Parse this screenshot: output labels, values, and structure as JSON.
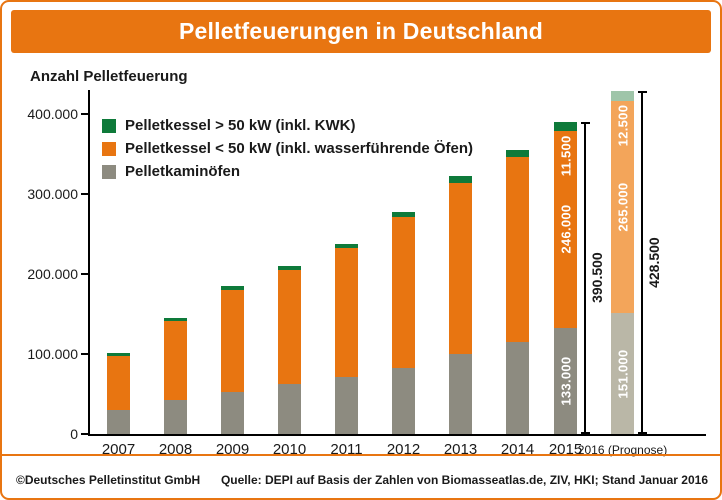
{
  "header": {
    "title": "Pelletfeuerungen in Deutschland"
  },
  "y_axis_label": "Anzahl Pelletfeuerung",
  "legend": [
    {
      "label": "Pelletkessel > 50 kW (inkl. KWK)",
      "color": "#0e7a3a"
    },
    {
      "label": "Pelletkessel < 50 kW (inkl. wasserführende Öfen)",
      "color": "#e87511"
    },
    {
      "label": "Pelletkaminöfen",
      "color": "#8d8b80"
    }
  ],
  "chart_data": {
    "type": "bar",
    "stacked": true,
    "title": "Pelletfeuerungen in Deutschland",
    "ylabel": "Anzahl Pelletfeuerung",
    "ylim": [
      0,
      430000
    ],
    "grid": false,
    "legend_position": "top-left",
    "y_ticks": [
      {
        "value": 0,
        "label": "0"
      },
      {
        "value": 100000,
        "label": "100.000"
      },
      {
        "value": 200000,
        "label": "200.000"
      },
      {
        "value": 300000,
        "label": "300.000"
      },
      {
        "value": 400000,
        "label": "400.000"
      }
    ],
    "categories": [
      "2007",
      "2008",
      "2009",
      "2010",
      "2011",
      "2012",
      "2013",
      "2014",
      "2015",
      "2016 (Prognose)"
    ],
    "forecast_index": 9,
    "series": [
      {
        "name": "Pelletkaminöfen",
        "color": "#8d8b80",
        "forecast_color": "#bab7a7",
        "values": [
          30000,
          42000,
          53000,
          62000,
          71000,
          82000,
          100000,
          115000,
          133000,
          151000
        ]
      },
      {
        "name": "Pelletkessel < 50 kW (inkl. wasserführende Öfen)",
        "color": "#e87511",
        "forecast_color": "#f3a55a",
        "values": [
          68000,
          99000,
          127000,
          143000,
          161000,
          189000,
          214000,
          231000,
          246000,
          265000
        ]
      },
      {
        "name": "Pelletkessel > 50 kW (inkl. KWK)",
        "color": "#0e7a3a",
        "forecast_color": "#9fc5a9",
        "values": [
          3000,
          4000,
          5000,
          5500,
          6000,
          7000,
          8000,
          9000,
          11500,
          12500
        ]
      }
    ],
    "segment_labels": [
      {
        "category_index": 8,
        "labels": [
          "133.000",
          "246.000",
          "11.500"
        ]
      },
      {
        "category_index": 9,
        "labels": [
          "151.000",
          "265.000",
          "12.500"
        ]
      }
    ],
    "totals": [
      {
        "category_index": 8,
        "label": "390.500"
      },
      {
        "category_index": 9,
        "label": "428.500"
      }
    ]
  },
  "footer": {
    "copyright": "©Deutsches Pelletinstitut GmbH",
    "source": "Quelle: DEPI auf Basis der Zahlen von Biomasseatlas.de, ZIV, HKI; Stand Januar 2016"
  },
  "colors": {
    "accent": "#e87511",
    "green": "#0e7a3a",
    "gray": "#8d8b80"
  }
}
